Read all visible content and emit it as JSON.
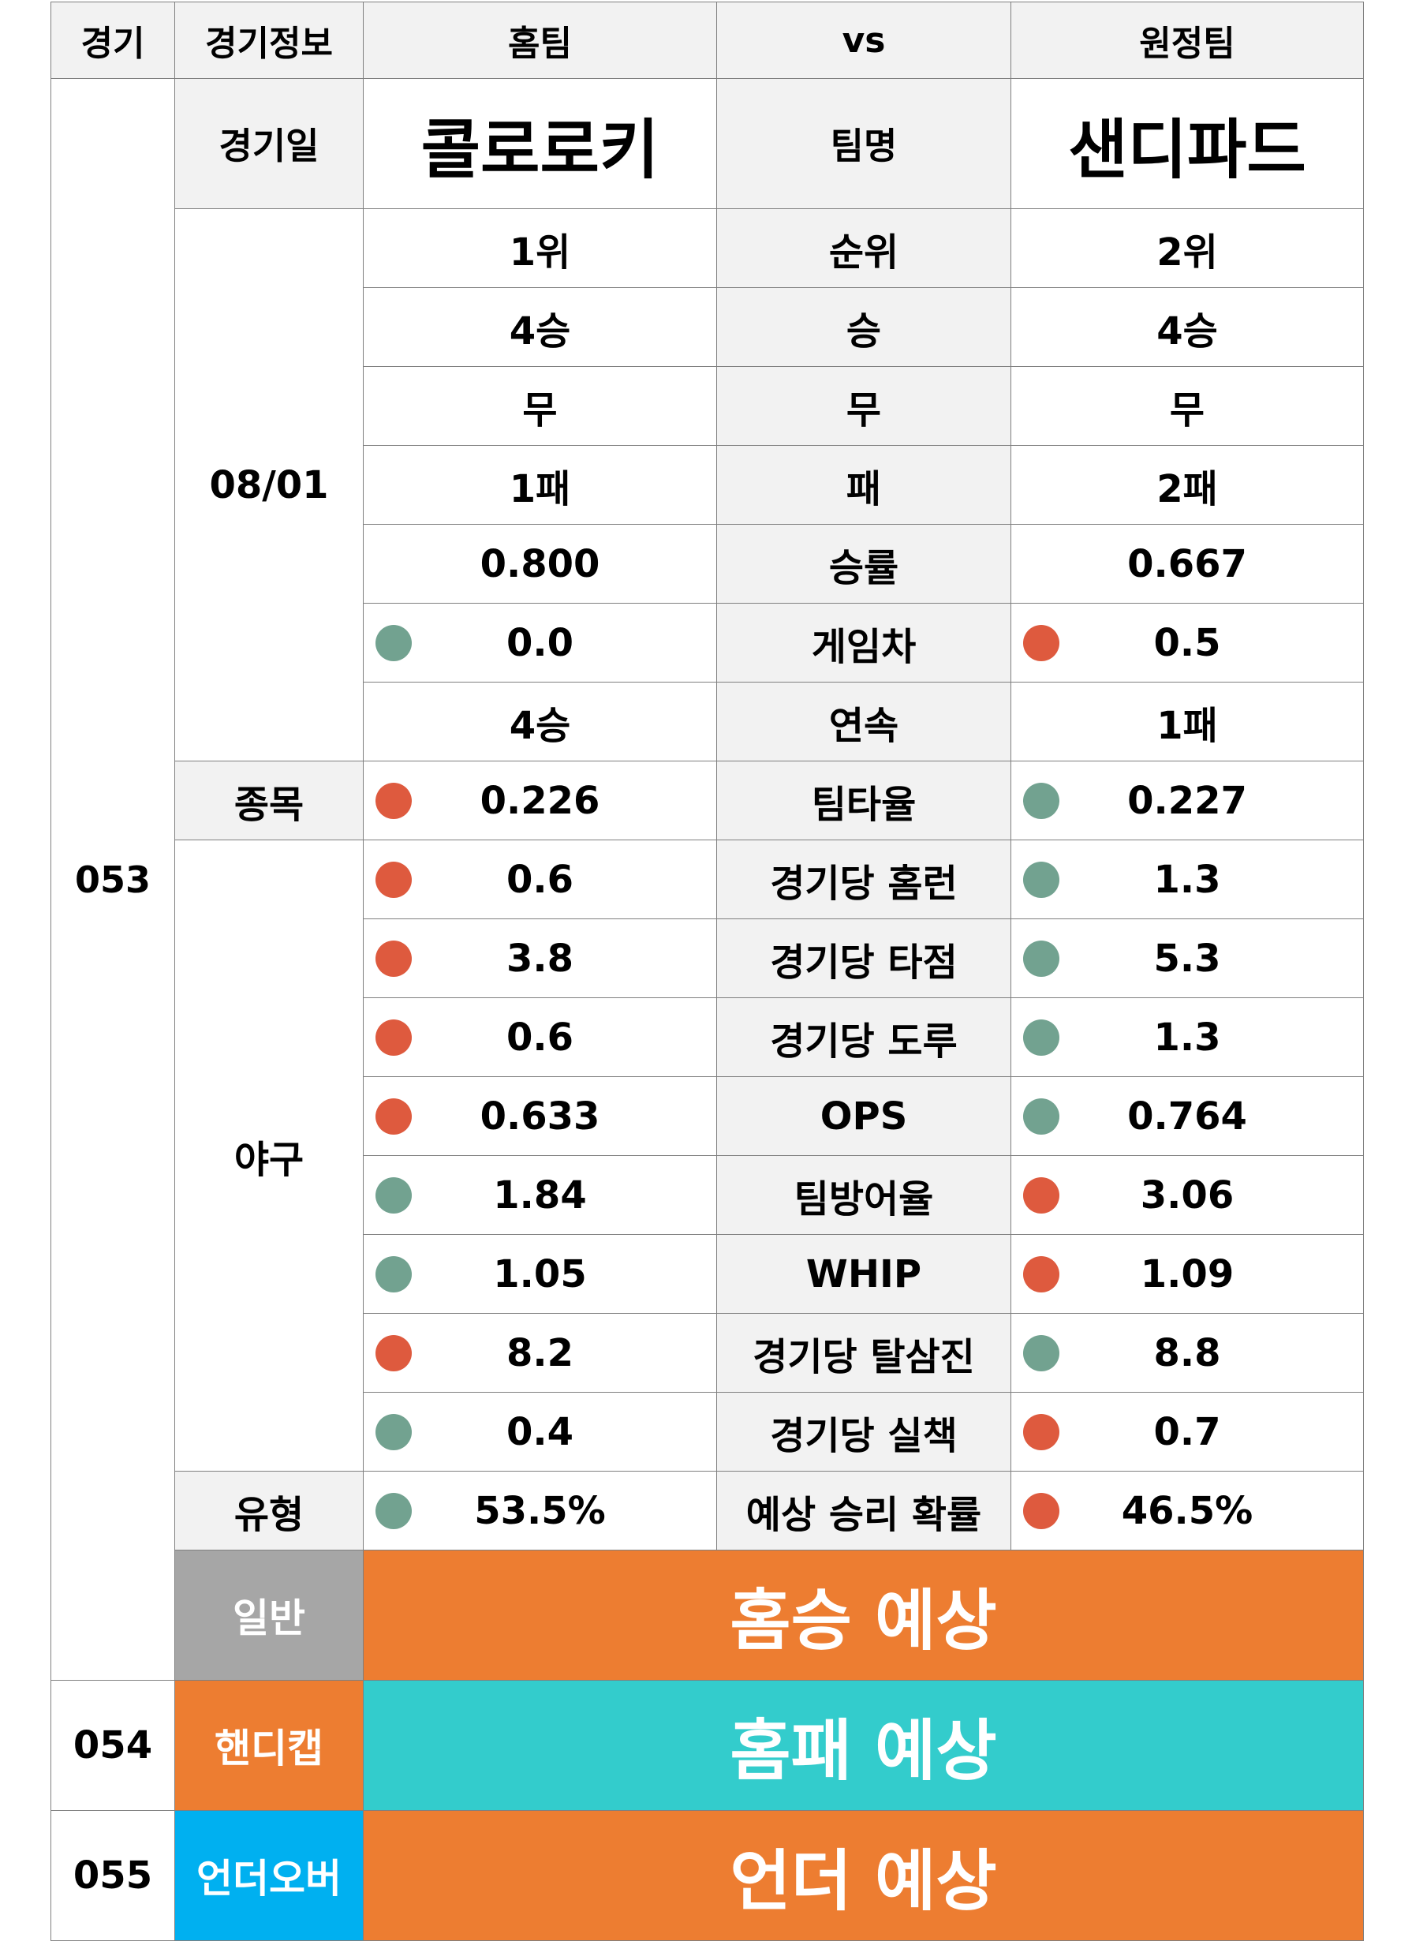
{
  "header": {
    "col_game": "경기",
    "col_info": "경기정보",
    "col_home": "홈팀",
    "col_vs": "vs",
    "col_away": "원정팀"
  },
  "game": {
    "number": "053",
    "date_label": "경기일",
    "date": "08/01",
    "home_team": "콜로로키",
    "team_label": "팀명",
    "away_team": "샌디파드",
    "sport_label": "종목",
    "sport": "야구",
    "type_label": "유형"
  },
  "stats": [
    {
      "label": "순위",
      "home": "1위",
      "away": "2위",
      "home_dot": "",
      "away_dot": ""
    },
    {
      "label": "승",
      "home": "4승",
      "away": "4승",
      "home_dot": "",
      "away_dot": ""
    },
    {
      "label": "무",
      "home": "무",
      "away": "무",
      "home_dot": "",
      "away_dot": ""
    },
    {
      "label": "패",
      "home": "1패",
      "away": "2패",
      "home_dot": "",
      "away_dot": ""
    },
    {
      "label": "승률",
      "home": "0.800",
      "away": "0.667",
      "home_dot": "",
      "away_dot": ""
    },
    {
      "label": "게임차",
      "home": "0.0",
      "away": "0.5",
      "home_dot": "green",
      "away_dot": "red"
    },
    {
      "label": "연속",
      "home": "4승",
      "away": "1패",
      "home_dot": "",
      "away_dot": ""
    },
    {
      "label": "팀타율",
      "home": "0.226",
      "away": "0.227",
      "home_dot": "red",
      "away_dot": "green"
    },
    {
      "label": "경기당 홈런",
      "home": "0.6",
      "away": "1.3",
      "home_dot": "red",
      "away_dot": "green"
    },
    {
      "label": "경기당 타점",
      "home": "3.8",
      "away": "5.3",
      "home_dot": "red",
      "away_dot": "green"
    },
    {
      "label": "경기당 도루",
      "home": "0.6",
      "away": "1.3",
      "home_dot": "red",
      "away_dot": "green"
    },
    {
      "label": "OPS",
      "home": "0.633",
      "away": "0.764",
      "home_dot": "red",
      "away_dot": "green"
    },
    {
      "label": "팀방어율",
      "home": "1.84",
      "away": "3.06",
      "home_dot": "green",
      "away_dot": "red"
    },
    {
      "label": "WHIP",
      "home": "1.05",
      "away": "1.09",
      "home_dot": "green",
      "away_dot": "red"
    },
    {
      "label": "경기당 탈삼진",
      "home": "8.2",
      "away": "8.8",
      "home_dot": "red",
      "away_dot": "green"
    },
    {
      "label": "경기당 실책",
      "home": "0.4",
      "away": "0.7",
      "home_dot": "green",
      "away_dot": "red"
    },
    {
      "label": "예상 승리 확률",
      "home": "53.5%",
      "away": "46.5%",
      "home_dot": "green",
      "away_dot": "red"
    }
  ],
  "predictions": [
    {
      "game": "",
      "label": "일반",
      "result": "홈승 예상",
      "label_color": "#a6a6a6",
      "result_color": "#ed7d31"
    },
    {
      "game": "054",
      "label": "핸디캡",
      "result": "홈패 예상",
      "label_color": "#ed7d31",
      "result_color": "#33cccc"
    },
    {
      "game": "055",
      "label": "언더오버",
      "result": "언더 예상",
      "label_color": "#00b0f0",
      "result_color": "#ed7d31"
    }
  ],
  "colors": {
    "green_dot": "#72a290",
    "red_dot": "#de5a3e",
    "gray_cell": "#f2f2f2"
  }
}
